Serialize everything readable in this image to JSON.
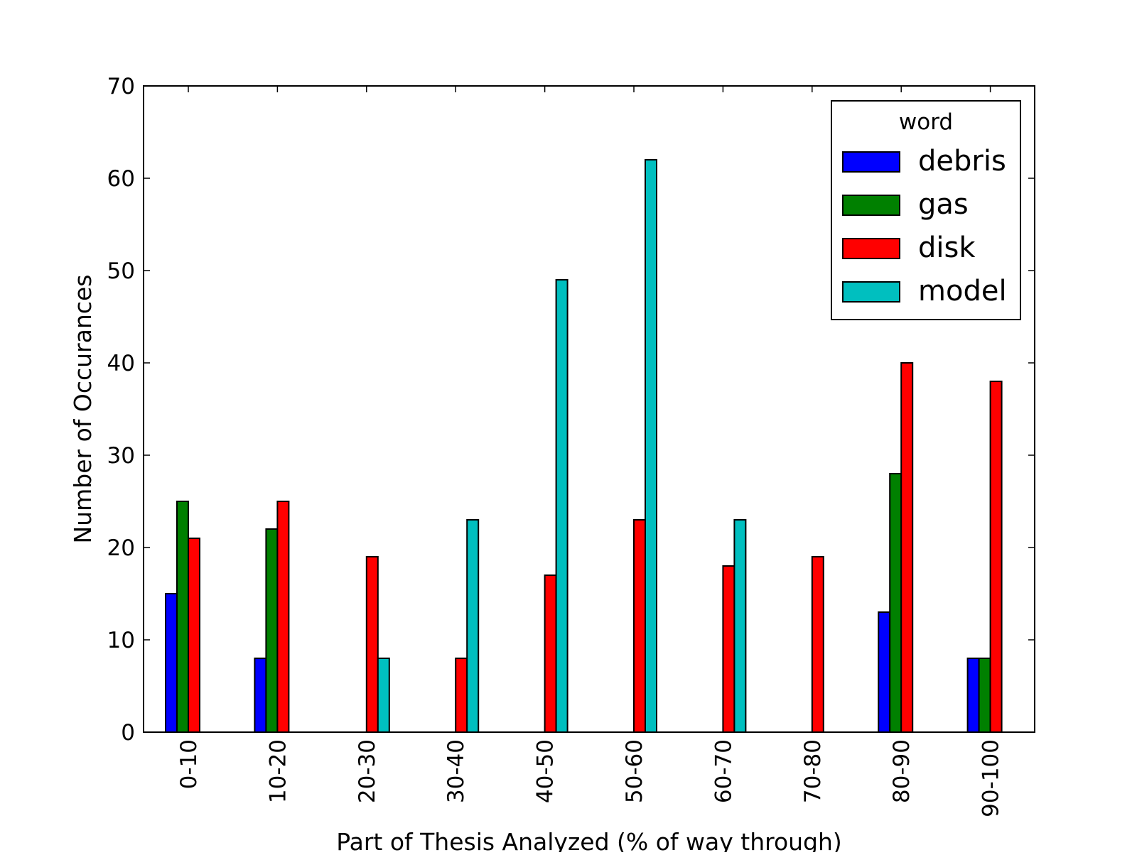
{
  "chart_data": {
    "type": "bar",
    "title": "",
    "xlabel": "Part of Thesis Analyzed (% of way through)",
    "ylabel": "Number of Occurances",
    "categories": [
      "0-10",
      "10-20",
      "20-30",
      "30-40",
      "40-50",
      "50-60",
      "60-70",
      "70-80",
      "80-90",
      "90-100"
    ],
    "series": [
      {
        "name": "debris",
        "color": "#0000ff",
        "values": [
          15,
          8,
          0,
          0,
          0,
          0,
          0,
          0,
          13,
          8
        ]
      },
      {
        "name": "gas",
        "color": "#008000",
        "values": [
          25,
          22,
          0,
          0,
          0,
          0,
          0,
          0,
          28,
          8
        ]
      },
      {
        "name": "disk",
        "color": "#ff0000",
        "values": [
          21,
          25,
          19,
          8,
          17,
          23,
          18,
          19,
          40,
          38
        ]
      },
      {
        "name": "model",
        "color": "#00bfbf",
        "values": [
          0,
          0,
          8,
          23,
          49,
          62,
          23,
          0,
          0,
          0
        ]
      }
    ],
    "ylim": [
      0,
      70
    ],
    "yticks": [
      0,
      10,
      20,
      30,
      40,
      50,
      60,
      70
    ],
    "legend": {
      "title": "word",
      "placement": "top-right"
    },
    "grid": false
  }
}
